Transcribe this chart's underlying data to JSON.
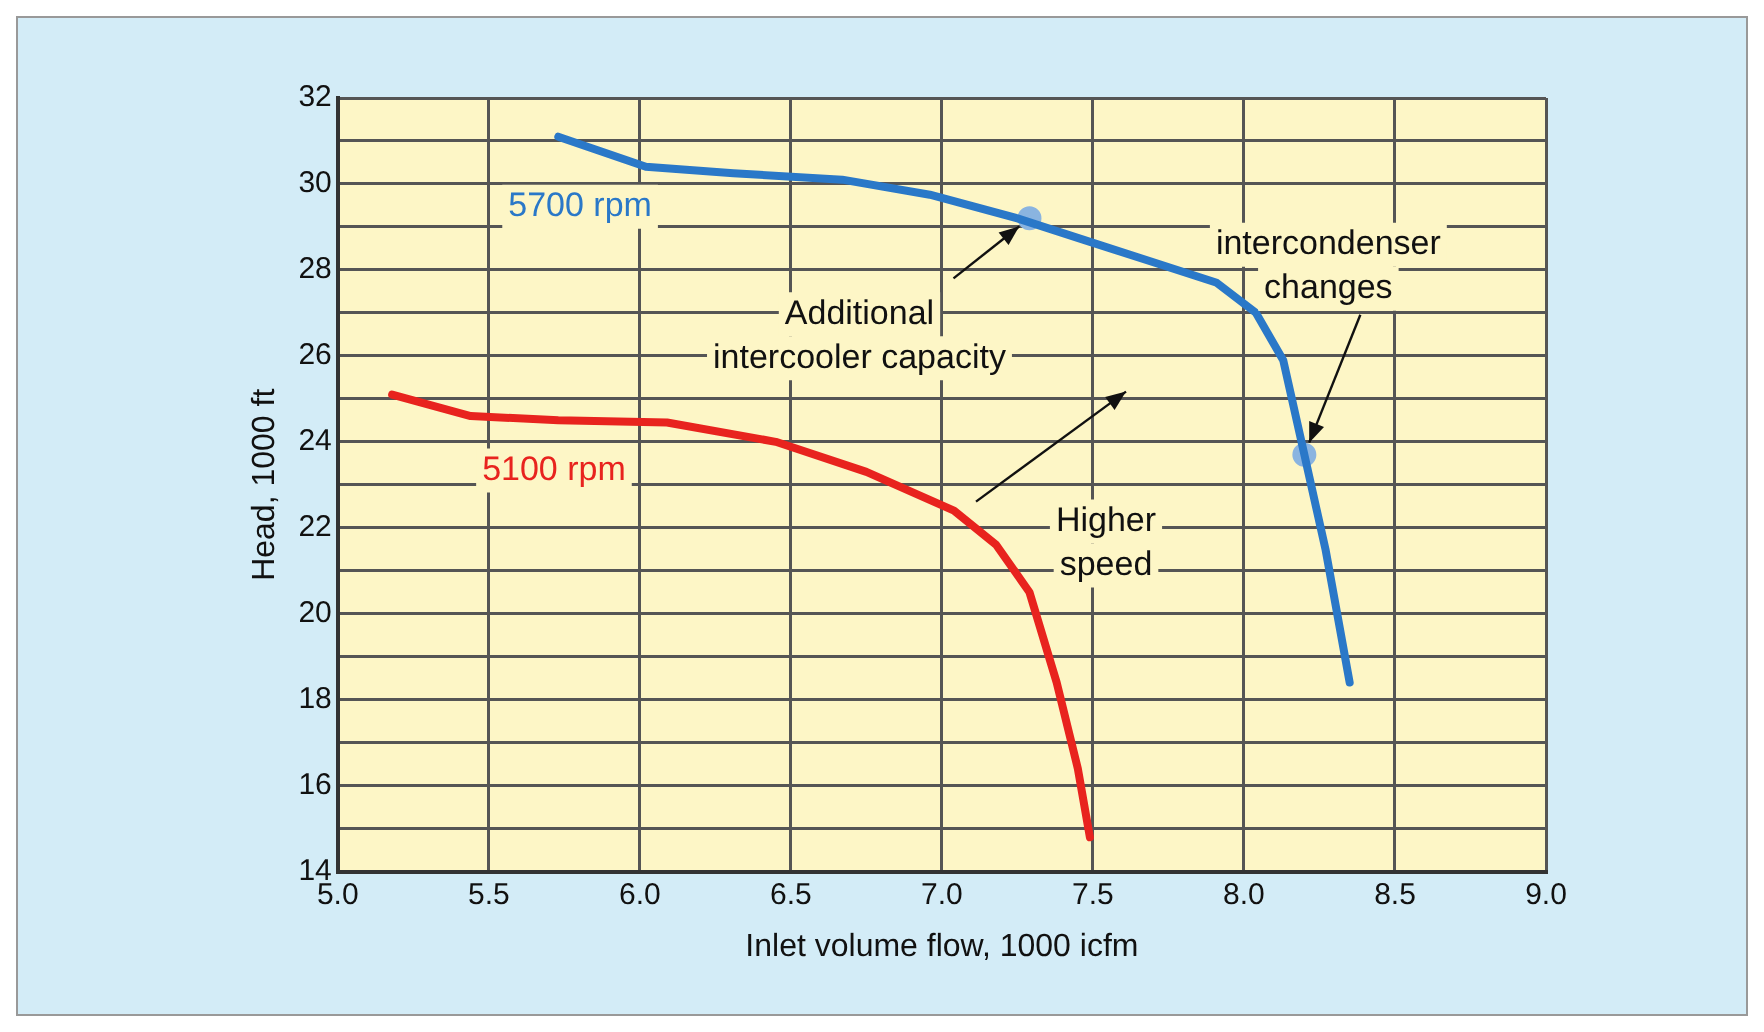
{
  "chart_data": {
    "type": "line",
    "xlabel": "Inlet volume flow, 1000 icfm",
    "ylabel": "Head, 1000 ft",
    "xlim": [
      5.0,
      9.0
    ],
    "xticks": [
      {
        "value": 5.0,
        "label": "5.0"
      },
      5.5,
      {
        "value": 6.0,
        "label": "6.0"
      },
      6.5,
      {
        "value": 7.0,
        "label": "7.0"
      },
      7.5,
      {
        "value": 8.0,
        "label": "8.0"
      },
      8.5,
      {
        "value": 9.0,
        "label": "9.0"
      }
    ],
    "ylim": [
      14,
      32
    ],
    "yticks": [
      14,
      {
        "value": 15,
        "label": null
      },
      16,
      {
        "value": 17,
        "label": null
      },
      18,
      {
        "value": 19,
        "label": null
      },
      20,
      {
        "value": 21,
        "label": null
      },
      22,
      {
        "value": 23,
        "label": null
      },
      24,
      {
        "value": 25,
        "label": null
      },
      26,
      {
        "value": 27,
        "label": null
      },
      28,
      {
        "value": 29,
        "label": null
      },
      30,
      {
        "value": 31,
        "label": null
      },
      32
    ],
    "grid": true,
    "legend": false,
    "line_style": "solid",
    "series": [
      {
        "name": "5700 rpm",
        "color": "#2a78c8",
        "x": [
          5.73,
          6.02,
          6.31,
          6.67,
          6.96,
          7.25,
          7.47,
          7.69,
          7.91,
          8.04,
          8.13,
          8.2,
          8.27,
          8.35
        ],
        "values": [
          31.1,
          30.4,
          30.25,
          30.1,
          29.75,
          29.2,
          28.7,
          28.2,
          27.7,
          27.0,
          25.9,
          23.7,
          21.5,
          18.4
        ]
      },
      {
        "name": "5100 rpm",
        "color": "#e8231e",
        "x": [
          5.18,
          5.44,
          5.73,
          6.09,
          6.45,
          6.75,
          7.04,
          7.18,
          7.29,
          7.38,
          7.45,
          7.49
        ],
        "values": [
          25.1,
          24.6,
          24.5,
          24.45,
          24.0,
          23.3,
          22.4,
          21.6,
          20.5,
          18.4,
          16.4,
          14.8
        ]
      },
      {
        "type": "scatter",
        "color": "#8ab4e0",
        "x": [
          7.29,
          8.2
        ],
        "values": [
          29.2,
          23.7
        ]
      }
    ],
    "annotations": [
      {
        "text": "Additional\nintercooler capacity",
        "x": 7.29,
        "y": 29.2
      },
      {
        "text": "intercondenser\nchanges",
        "x": 8.2,
        "y": 23.7
      },
      "Higher\nspeed"
    ]
  }
}
